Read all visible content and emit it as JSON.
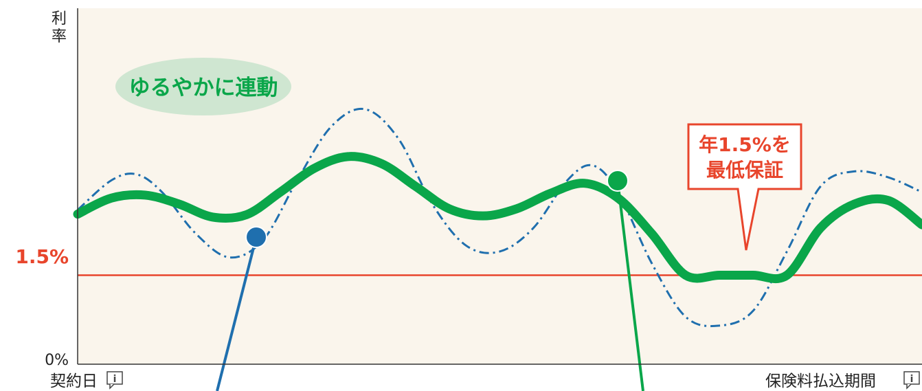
{
  "chart_data": {
    "type": "line",
    "title": "",
    "ylabel": "利率",
    "x_start_label": "契約日",
    "x_end_label": "保険料払込期間",
    "y_ticks": [
      "0%",
      "1.5%"
    ],
    "guarantee_rate": 1.5,
    "guarantee_label": "1.5%",
    "callout_text": [
      "年1.5%を",
      "最低保証"
    ],
    "bubble_text": "ゆるやかに連動",
    "colors": {
      "background": "#faf5ec",
      "guarantee_line": "#e8452c",
      "smoothed_series": "#0aa64a",
      "market_series": "#1f6fae",
      "bubble_fill": "#cfe6d1",
      "axis": "#333333"
    },
    "ylim": [
      0,
      6
    ],
    "xlim": [
      0,
      100
    ],
    "series": [
      {
        "style": "solid-thick",
        "color": "#0aa64a",
        "x": [
          0,
          4,
          8,
          12,
          16,
          20,
          24,
          28,
          32,
          36,
          40,
          44,
          48,
          52,
          56,
          60,
          64,
          68,
          72,
          76,
          80,
          84,
          88,
          92,
          96,
          100
        ],
        "y": [
          2.53,
          2.8,
          2.85,
          2.7,
          2.48,
          2.52,
          2.9,
          3.3,
          3.5,
          3.38,
          3.0,
          2.62,
          2.5,
          2.62,
          2.88,
          3.05,
          2.8,
          2.2,
          1.5,
          1.5,
          1.5,
          1.5,
          2.3,
          2.7,
          2.76,
          2.35
        ]
      },
      {
        "style": "dash-dot",
        "color": "#1f6fae",
        "x": [
          0,
          4,
          7,
          10,
          14,
          18,
          22,
          26,
          30,
          34,
          38,
          42,
          46,
          50,
          54,
          58,
          61,
          64,
          68,
          72,
          76,
          80,
          84,
          88,
          92,
          96,
          100
        ],
        "y": [
          2.6,
          3.1,
          3.2,
          2.9,
          2.2,
          1.8,
          2.1,
          3.1,
          4.0,
          4.3,
          3.8,
          2.7,
          2.0,
          1.9,
          2.3,
          3.1,
          3.35,
          2.9,
          1.7,
          0.8,
          0.65,
          0.9,
          1.9,
          3.0,
          3.25,
          3.15,
          2.9
        ]
      }
    ]
  }
}
